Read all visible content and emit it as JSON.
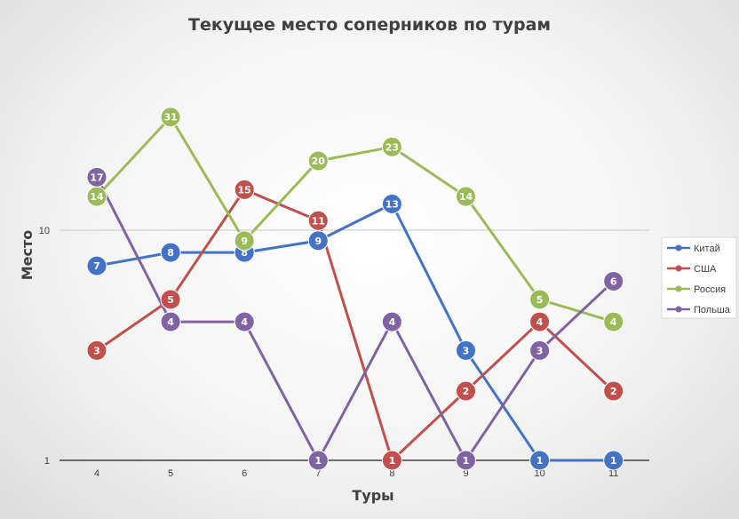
{
  "chart_data": {
    "type": "line",
    "title": "Текущее место соперников по турам",
    "xlabel": "Туры",
    "ylabel": "Место",
    "yscale": "log",
    "ylim": [
      1,
      40
    ],
    "yticks": [
      "1",
      "10"
    ],
    "grid": true,
    "legend_position": "right",
    "data_labels": true,
    "x": [
      "4",
      "5",
      "6",
      "7",
      "8",
      "9",
      "10",
      "11"
    ],
    "series": [
      {
        "name": "Китай",
        "color": "#4472c4",
        "values": [
          7,
          8,
          8,
          9,
          13,
          3,
          1,
          1
        ]
      },
      {
        "name": "США",
        "color": "#c0504d",
        "values": [
          3,
          5,
          15,
          11,
          1,
          2,
          4,
          2
        ]
      },
      {
        "name": "Россия",
        "color": "#9bbb59",
        "values": [
          14,
          31,
          9,
          20,
          23,
          14,
          5,
          4
        ]
      },
      {
        "name": "Польша",
        "color": "#8064a2",
        "values": [
          17,
          4,
          4,
          1,
          4,
          1,
          3,
          6
        ]
      }
    ]
  }
}
